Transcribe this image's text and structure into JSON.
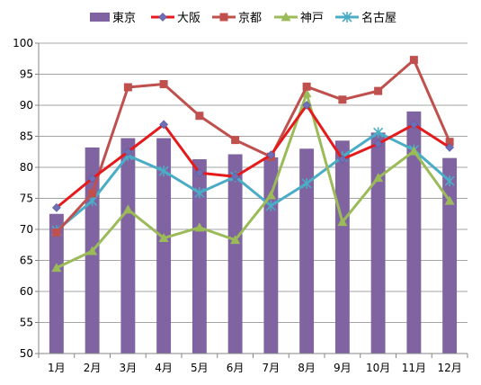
{
  "chart_data": {
    "type": "bar",
    "categories": [
      "1月",
      "2月",
      "3月",
      "4月",
      "5月",
      "6月",
      "7月",
      "8月",
      "9月",
      "10月",
      "11月",
      "12月"
    ],
    "ylim": [
      50,
      100
    ],
    "yticks": [
      50,
      55,
      60,
      65,
      70,
      75,
      80,
      85,
      90,
      95,
      100
    ],
    "grid": true,
    "legend_position": "top",
    "series": [
      {
        "name": "東京",
        "type": "bar",
        "color": "#8064a2",
        "marker": "bar",
        "values": [
          72.5,
          83.2,
          84.7,
          84.7,
          81.3,
          82.1,
          81.6,
          83.0,
          84.3,
          85.6,
          89.0,
          81.5
        ]
      },
      {
        "name": "大阪",
        "type": "line",
        "color": "#e41a1c",
        "marker": "diamond",
        "values": [
          73.5,
          78.2,
          82.5,
          86.9,
          79.1,
          78.5,
          82.0,
          90.0,
          81.3,
          83.8,
          86.9,
          83.2
        ]
      },
      {
        "name": "京都",
        "type": "line",
        "color": "#c0504d",
        "marker": "square",
        "values": [
          69.5,
          75.8,
          92.9,
          93.4,
          88.3,
          84.4,
          81.7,
          93.0,
          90.9,
          92.3,
          97.3,
          84.1
        ]
      },
      {
        "name": "神戸",
        "type": "line",
        "color": "#9bbb59",
        "marker": "triangle",
        "values": [
          63.8,
          66.5,
          73.2,
          68.6,
          70.3,
          68.3,
          75.5,
          91.9,
          71.2,
          78.3,
          82.6,
          74.6
        ]
      },
      {
        "name": "名古屋",
        "type": "line",
        "color": "#4bacc6",
        "marker": "asterisk",
        "values": [
          69.8,
          74.6,
          81.9,
          79.4,
          75.9,
          78.5,
          73.8,
          77.4,
          81.7,
          85.6,
          82.8,
          77.8
        ]
      }
    ]
  }
}
